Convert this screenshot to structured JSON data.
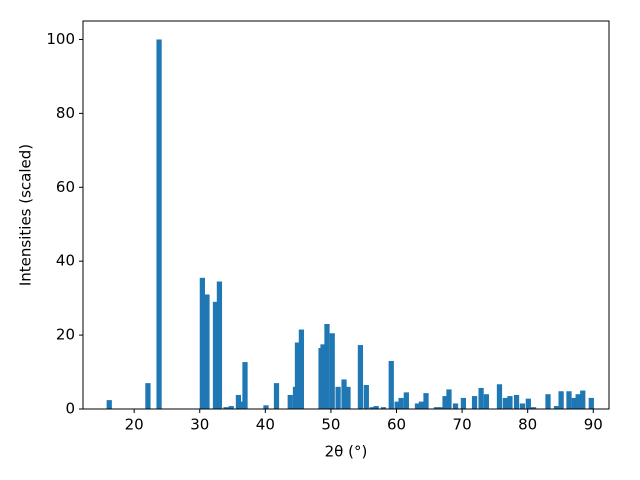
{
  "chart_data": {
    "type": "bar",
    "x_label": "2θ (°)",
    "y_label": "Intensities (scaled)",
    "x": [
      16.2,
      22.1,
      23.8,
      30.4,
      31.1,
      32.4,
      33.0,
      34.0,
      34.8,
      35.9,
      36.3,
      36.9,
      40.1,
      41.7,
      43.8,
      44.6,
      44.9,
      45.5,
      48.5,
      48.8,
      49.4,
      50.2,
      51.1,
      52.0,
      52.6,
      54.5,
      55.4,
      56.3,
      56.9,
      58.0,
      59.2,
      60.1,
      60.7,
      61.5,
      63.2,
      63.8,
      64.5,
      66.1,
      66.7,
      67.4,
      68.0,
      69.0,
      70.2,
      71.9,
      72.9,
      73.7,
      75.7,
      76.6,
      77.3,
      78.3,
      79.2,
      80.1,
      80.9,
      83.1,
      84.4,
      85.1,
      86.3,
      87.1,
      87.7,
      88.4,
      89.7
    ],
    "values": [
      2.4,
      7,
      100,
      35.5,
      31,
      29,
      34.5,
      0.5,
      0.8,
      3.8,
      2,
      12.7,
      1,
      7,
      3.8,
      6,
      18,
      21.5,
      16.5,
      17.5,
      23,
      20.5,
      6,
      8,
      6,
      17.3,
      6.5,
      0.5,
      0.8,
      0.5,
      13,
      2,
      3,
      4.5,
      1.5,
      2,
      4.3,
      0.5,
      0.5,
      3.5,
      5.3,
      1.5,
      3,
      3.5,
      5.7,
      4,
      6.7,
      3,
      3.5,
      3.8,
      1.5,
      2.8,
      0.5,
      4,
      0.8,
      4.8,
      4.8,
      3,
      4,
      5,
      3
    ],
    "color": "#1f77b4",
    "xlim": [
      12.2,
      92.4
    ],
    "xticks": [
      20,
      30,
      40,
      50,
      60,
      70,
      80,
      90
    ],
    "ylim": [
      0,
      105
    ],
    "yticks": [
      0,
      20,
      40,
      60,
      80,
      100
    ],
    "grid": false
  }
}
